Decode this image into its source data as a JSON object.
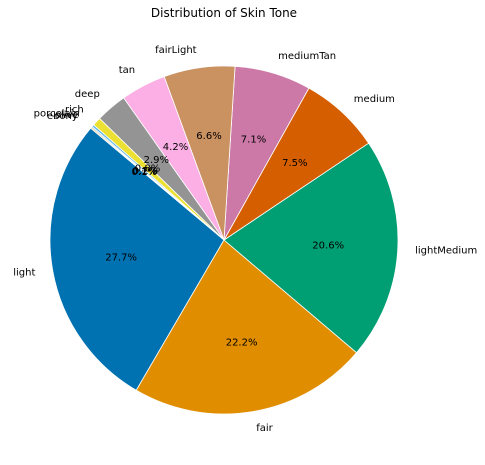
{
  "chart_data": {
    "type": "pie",
    "title": "Distribution of Skin Tone",
    "start_angle_deg": 140,
    "direction": "counterclockwise",
    "slices": [
      {
        "label": "light",
        "value": 27.7,
        "pct_label": "27.7%",
        "color": "#0072b2"
      },
      {
        "label": "fair",
        "value": 22.2,
        "pct_label": "22.2%",
        "color": "#e08e00"
      },
      {
        "label": "lightMedium",
        "value": 20.6,
        "pct_label": "20.6%",
        "color": "#009e73"
      },
      {
        "label": "medium",
        "value": 7.5,
        "pct_label": "7.5%",
        "color": "#d55e00"
      },
      {
        "label": "mediumTan",
        "value": 7.1,
        "pct_label": "7.1%",
        "color": "#cc79a7"
      },
      {
        "label": "fairLight",
        "value": 6.6,
        "pct_label": "6.6%",
        "color": "#ca9161"
      },
      {
        "label": "tan",
        "value": 4.2,
        "pct_label": "4.2%",
        "color": "#fbafe4"
      },
      {
        "label": "deep",
        "value": 2.9,
        "pct_label": "2.9%",
        "color": "#949494"
      },
      {
        "label": "rich",
        "value": 0.8,
        "pct_label": "0.8%",
        "color": "#ece133"
      },
      {
        "label": "porcelain",
        "value": 0.2,
        "pct_label": "0.2%",
        "color": "#56b4e9"
      },
      {
        "label": "olive",
        "value": 0.1,
        "pct_label": "0.1%",
        "color": "#0072b2"
      },
      {
        "label": "ebony",
        "value": 0.1,
        "pct_label": "0.1%",
        "color": "#e08e00"
      }
    ]
  }
}
